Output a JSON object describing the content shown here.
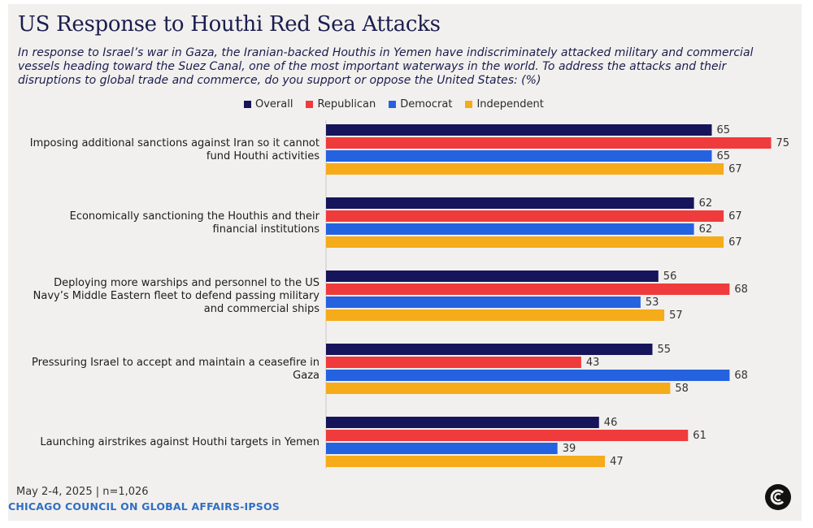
{
  "header": {
    "title": "US Response to Houthi Red Sea Attacks",
    "subtitle": "In response to Israel’s war in Gaza, the Iranian-backed Houthis in Yemen have indiscriminately attacked military and commercial vessels heading toward the Suez Canal, one of the most important waterways in the world. To address the attacks and their disruptions to global trade and commerce, do you support or oppose the United States: (%)"
  },
  "footer": {
    "date": "May 2-4, 2025 | n=1,026",
    "source": "CHICAGO COUNCIL ON GLOBAL AFFAIRS-IPSOS",
    "logo_icon": "chicago-council-logo-icon"
  },
  "chart_data": {
    "type": "bar",
    "orientation": "horizontal",
    "categories": [
      [
        "Imposing additional sanctions against Iran so it cannot",
        "fund Houthi activities"
      ],
      [
        "Economically sanctioning the Houthis and their",
        "financial institutions"
      ],
      [
        "Deploying more warships and personnel to the US",
        "Navy’s Middle Eastern fleet to defend passing military",
        "and commercial ships"
      ],
      [
        "Pressuring Israel to accept and maintain a ceasefire in",
        "Gaza"
      ],
      [
        "Launching airstrikes against Houthi targets in Yemen"
      ]
    ],
    "series": [
      {
        "name": "Overall",
        "color": "#16145a",
        "values": [
          65,
          62,
          56,
          55,
          46
        ]
      },
      {
        "name": "Republican",
        "color": "#ef3b3b",
        "values": [
          75,
          67,
          68,
          43,
          61
        ]
      },
      {
        "name": "Democrat",
        "color": "#2462e0",
        "values": [
          65,
          62,
          53,
          68,
          39
        ]
      },
      {
        "name": "Independent",
        "color": "#f5ab1a",
        "values": [
          67,
          67,
          57,
          58,
          47
        ]
      }
    ],
    "legend_position": "top",
    "grid": false
  }
}
